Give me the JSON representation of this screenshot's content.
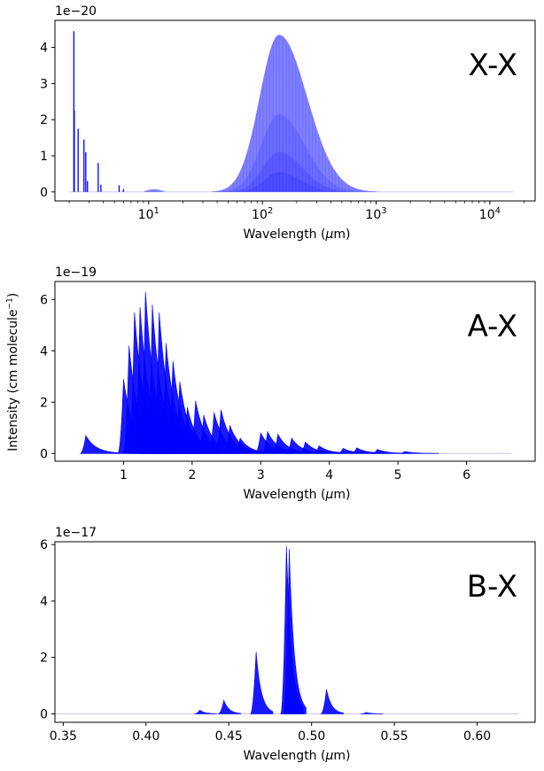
{
  "figure": {
    "ylabel_main": "Intensity (cm molecule",
    "ylabel_sup": "−1",
    "ylabel_close": ")"
  },
  "chart_data": [
    {
      "type": "line",
      "panel_label": "X-X",
      "xlabel": "Wavelength (μm)",
      "xlabel_prefix": "Wavelength (",
      "xlabel_unit": "μ",
      "xlabel_suffix": "m)",
      "xscale": "log",
      "xlim": [
        1.5,
        25000
      ],
      "ylim": [
        -0.25,
        4.75
      ],
      "y_multiplier": "1e−20",
      "x_ticks": [
        {
          "value": 10,
          "base": "10",
          "exp": "1"
        },
        {
          "value": 100,
          "base": "10",
          "exp": "2"
        },
        {
          "value": 1000,
          "base": "10",
          "exp": "3"
        },
        {
          "value": 10000,
          "base": "10",
          "exp": "4"
        }
      ],
      "y_ticks": [
        {
          "value": 0,
          "label": "0"
        },
        {
          "value": 1,
          "label": "1"
        },
        {
          "value": 2,
          "label": "2"
        },
        {
          "value": 3,
          "label": "3"
        },
        {
          "value": 4,
          "label": "4"
        }
      ],
      "color": "#0000ff",
      "line_peaks": [
        [
          2.2,
          4.45
        ],
        [
          2.22,
          2.25
        ],
        [
          2.4,
          1.75
        ],
        [
          2.7,
          1.45
        ],
        [
          2.8,
          1.1
        ],
        [
          2.9,
          0.3
        ],
        [
          3.6,
          0.8
        ],
        [
          3.8,
          0.2
        ],
        [
          5.5,
          0.18
        ],
        [
          6.0,
          0.08
        ]
      ],
      "envelopes": [
        {
          "center": 140,
          "peak": 4.35,
          "width": 0.24
        },
        {
          "center": 140,
          "peak": 2.15,
          "width": 0.22
        },
        {
          "center": 140,
          "peak": 1.1,
          "width": 0.2
        },
        {
          "center": 140,
          "peak": 0.55,
          "width": 0.18
        }
      ],
      "x_end": 16000,
      "grid": false
    },
    {
      "type": "area",
      "panel_label": "A-X",
      "xlabel": "Wavelength (μm)",
      "xlabel_prefix": "Wavelength (",
      "xlabel_unit": "μ",
      "xlabel_suffix": "m)",
      "xscale": "linear",
      "xlim": [
        0.0,
        7.0
      ],
      "ylim": [
        -0.3,
        6.7
      ],
      "y_multiplier": "1e−19",
      "x_ticks": [
        {
          "value": 1,
          "label": "1"
        },
        {
          "value": 2,
          "label": "2"
        },
        {
          "value": 3,
          "label": "3"
        },
        {
          "value": 4,
          "label": "4"
        },
        {
          "value": 5,
          "label": "5"
        },
        {
          "value": 6,
          "label": "6"
        }
      ],
      "y_ticks": [
        {
          "value": 0,
          "label": "0"
        },
        {
          "value": 2,
          "label": "2"
        },
        {
          "value": 4,
          "label": "4"
        },
        {
          "value": 6,
          "label": "6"
        }
      ],
      "color": "#0000ff",
      "bands": [
        [
          0.45,
          0.7
        ],
        [
          1.0,
          2.9
        ],
        [
          1.08,
          4.2
        ],
        [
          1.16,
          5.5
        ],
        [
          1.24,
          5.7
        ],
        [
          1.32,
          6.3
        ],
        [
          1.42,
          5.8
        ],
        [
          1.52,
          5.5
        ],
        [
          1.62,
          4.3
        ],
        [
          1.72,
          3.6
        ],
        [
          1.82,
          2.8
        ],
        [
          1.93,
          1.8
        ],
        [
          2.05,
          2.05
        ],
        [
          2.17,
          1.5
        ],
        [
          2.32,
          1.6
        ],
        [
          2.42,
          1.7
        ],
        [
          2.55,
          1.1
        ],
        [
          2.7,
          0.6
        ],
        [
          3.0,
          0.8
        ],
        [
          3.1,
          0.85
        ],
        [
          3.25,
          0.75
        ],
        [
          3.45,
          0.6
        ],
        [
          3.65,
          0.45
        ],
        [
          3.85,
          0.3
        ],
        [
          4.2,
          0.2
        ],
        [
          4.4,
          0.22
        ],
        [
          4.7,
          0.16
        ],
        [
          5.1,
          0.08
        ]
      ],
      "x_end": 6.65,
      "grid": false
    },
    {
      "type": "area",
      "panel_label": "B-X",
      "xlabel": "Wavelength (μm)",
      "xlabel_prefix": "Wavelength (",
      "xlabel_unit": "μ",
      "xlabel_suffix": "m)",
      "xscale": "linear",
      "xlim": [
        0.345,
        0.635
      ],
      "ylim": [
        -0.3,
        6.1
      ],
      "y_multiplier": "1e−17",
      "x_ticks": [
        {
          "value": 0.35,
          "label": "0.35"
        },
        {
          "value": 0.4,
          "label": "0.40"
        },
        {
          "value": 0.45,
          "label": "0.45"
        },
        {
          "value": 0.5,
          "label": "0.50"
        },
        {
          "value": 0.55,
          "label": "0.55"
        },
        {
          "value": 0.6,
          "label": "0.60"
        }
      ],
      "y_ticks": [
        {
          "value": 0,
          "label": "0"
        },
        {
          "value": 2,
          "label": "2"
        },
        {
          "value": 4,
          "label": "4"
        },
        {
          "value": 6,
          "label": "6"
        }
      ],
      "color": "#0000ff",
      "bands": [
        [
          0.4325,
          0.13
        ],
        [
          0.447,
          0.48
        ],
        [
          0.4665,
          2.2
        ],
        [
          0.4848,
          5.95
        ],
        [
          0.4865,
          5.85
        ],
        [
          0.509,
          0.87
        ],
        [
          0.533,
          0.05
        ]
      ],
      "x_end": 0.625,
      "grid": false
    }
  ]
}
